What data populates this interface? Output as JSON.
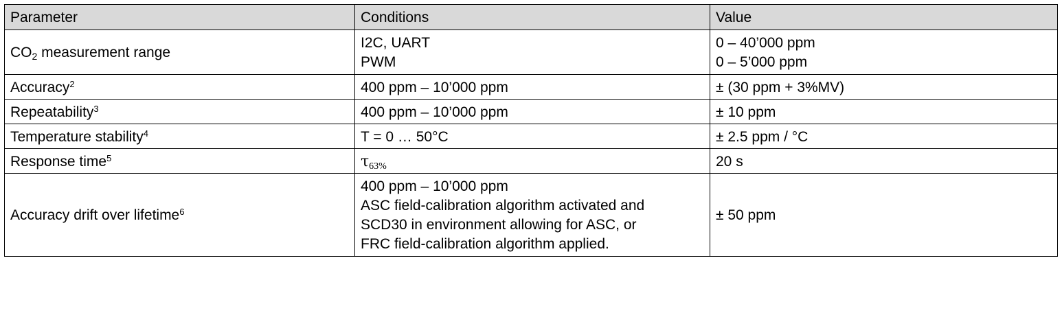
{
  "table": {
    "headers": {
      "parameter": "Parameter",
      "conditions": "Conditions",
      "value": "Value"
    },
    "rows": [
      {
        "parameter": {
          "text": "CO",
          "sub": "2",
          "rest": " measurement range"
        },
        "conditions": [
          "I2C, UART",
          "PWM"
        ],
        "value": [
          "0 – 40’000 ppm",
          "0 – 5’000 ppm"
        ]
      },
      {
        "parameter": {
          "text": "Accuracy",
          "footnote": "2"
        },
        "conditions": [
          "400 ppm – 10’000 ppm"
        ],
        "value": [
          "± (30 ppm + 3%MV)"
        ]
      },
      {
        "parameter": {
          "text": "Repeatability",
          "footnote": "3"
        },
        "conditions": [
          "400 ppm – 10’000 ppm"
        ],
        "value": [
          "± 10 ppm"
        ]
      },
      {
        "parameter": {
          "text": "Temperature stability",
          "footnote": "4"
        },
        "conditions": [
          "T = 0 … 50°C"
        ],
        "value": [
          "± 2.5 ppm / °C"
        ]
      },
      {
        "parameter": {
          "text": "Response time",
          "footnote": "5"
        },
        "conditions": {
          "symbol": "τ",
          "subscript": "63%"
        },
        "value": [
          "20 s"
        ]
      },
      {
        "parameter": {
          "text": "Accuracy drift over lifetime",
          "footnote": "6"
        },
        "conditions": [
          "400 ppm – 10’000 ppm",
          "ASC field-calibration algorithm activated and",
          "SCD30 in environment allowing for ASC, or",
          "FRC field-calibration algorithm applied."
        ],
        "value": [
          "± 50 ppm"
        ]
      }
    ]
  }
}
